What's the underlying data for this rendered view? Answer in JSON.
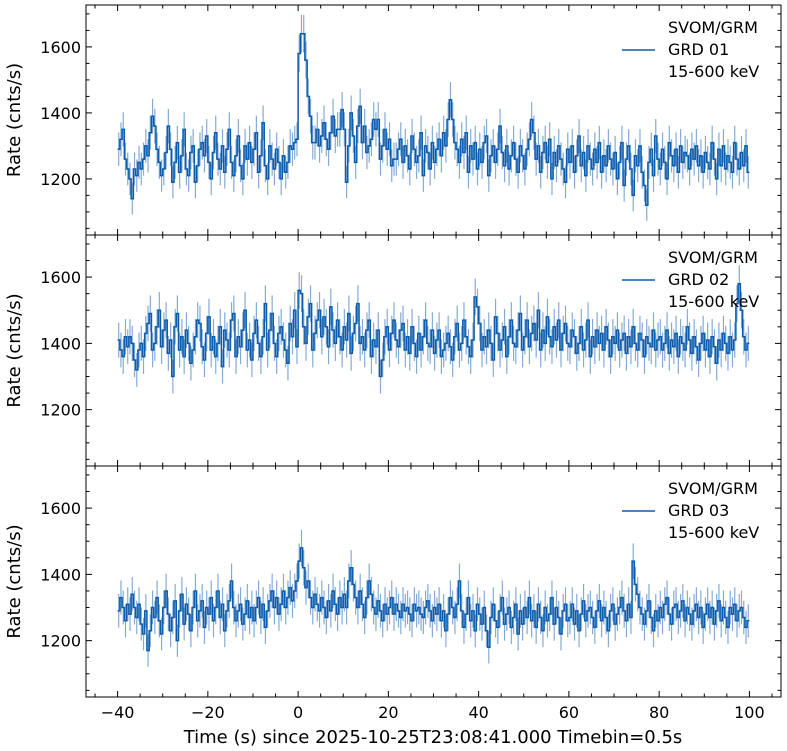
{
  "chart_data": [
    {
      "type": "line",
      "title": "",
      "legend": [
        "SVOM/GRM",
        "GRD 01",
        "15-600 keV"
      ],
      "legend_placement": "top-right",
      "ylabel": "Rate (cnts/s)",
      "xlim": [
        -47,
        107
      ],
      "ylim": [
        1030,
        1727
      ],
      "x_start": -40,
      "timebin": 0.5,
      "values": [
        1290,
        1320,
        1350,
        1260,
        1230,
        1200,
        1140,
        1230,
        1210,
        1250,
        1230,
        1260,
        1300,
        1270,
        1340,
        1390,
        1360,
        1290,
        1250,
        1210,
        1230,
        1280,
        1360,
        1290,
        1190,
        1250,
        1310,
        1220,
        1270,
        1350,
        1230,
        1210,
        1280,
        1300,
        1190,
        1240,
        1290,
        1310,
        1270,
        1330,
        1250,
        1200,
        1280,
        1340,
        1260,
        1230,
        1300,
        1220,
        1290,
        1350,
        1250,
        1210,
        1270,
        1330,
        1240,
        1200,
        1300,
        1260,
        1310,
        1250,
        1290,
        1340,
        1220,
        1270,
        1370,
        1240,
        1200,
        1300,
        1260,
        1230,
        1290,
        1250,
        1200,
        1270,
        1220,
        1250,
        1300,
        1290,
        1310,
        1320,
        1580,
        1640,
        1640,
        1560,
        1450,
        1390,
        1310,
        1310,
        1350,
        1300,
        1330,
        1370,
        1320,
        1290,
        1340,
        1390,
        1330,
        1350,
        1350,
        1410,
        1350,
        1190,
        1300,
        1400,
        1330,
        1250,
        1360,
        1420,
        1310,
        1360,
        1280,
        1300,
        1320,
        1380,
        1350,
        1380,
        1260,
        1300,
        1350,
        1290,
        1320,
        1240,
        1260,
        1260,
        1290,
        1320,
        1250,
        1300,
        1270,
        1230,
        1330,
        1290,
        1250,
        1270,
        1340,
        1210,
        1300,
        1280,
        1230,
        1310,
        1250,
        1290,
        1320,
        1270,
        1340,
        1300,
        1380,
        1440,
        1380,
        1310,
        1290,
        1250,
        1320,
        1280,
        1340,
        1220,
        1300,
        1260,
        1310,
        1230,
        1290,
        1250,
        1310,
        1330,
        1210,
        1270,
        1300,
        1250,
        1290,
        1360,
        1280,
        1240,
        1300,
        1230,
        1270,
        1310,
        1260,
        1220,
        1300,
        1270,
        1230,
        1290,
        1320,
        1380,
        1340,
        1260,
        1300,
        1220,
        1280,
        1310,
        1250,
        1320,
        1200,
        1280,
        1240,
        1300,
        1260,
        1230,
        1190,
        1290,
        1250,
        1300,
        1220,
        1270,
        1330,
        1240,
        1280,
        1210,
        1300,
        1260,
        1230,
        1290,
        1250,
        1310,
        1220,
        1270,
        1240,
        1300,
        1260,
        1230,
        1280,
        1200,
        1250,
        1310,
        1180,
        1260,
        1300,
        1230,
        1150,
        1270,
        1240,
        1300,
        1220,
        1180,
        1120,
        1250,
        1290,
        1210,
        1330,
        1260,
        1230,
        1290,
        1250,
        1200,
        1310,
        1270,
        1240,
        1290,
        1220,
        1300,
        1250,
        1280,
        1270,
        1230,
        1290,
        1260,
        1300,
        1240,
        1270,
        1220,
        1280,
        1250,
        1230,
        1310,
        1260,
        1200,
        1290,
        1240,
        1300,
        1230,
        1270,
        1250,
        1220,
        1310,
        1260,
        1230,
        1280,
        1240,
        1300,
        1220
      ]
    },
    {
      "type": "line",
      "title": "",
      "legend": [
        "SVOM/GRM",
        "GRD 02",
        "15-600 keV"
      ],
      "legend_placement": "top-right",
      "ylabel": "Rate (cnts/s)",
      "xlim": [
        -47,
        107
      ],
      "ylim": [
        1030,
        1727
      ],
      "x_start": -40,
      "timebin": 0.5,
      "values": [
        1410,
        1380,
        1360,
        1420,
        1390,
        1420,
        1400,
        1350,
        1320,
        1380,
        1400,
        1360,
        1430,
        1460,
        1490,
        1380,
        1400,
        1450,
        1500,
        1390,
        1440,
        1470,
        1370,
        1410,
        1300,
        1450,
        1490,
        1380,
        1420,
        1360,
        1440,
        1400,
        1340,
        1380,
        1420,
        1470,
        1460,
        1390,
        1350,
        1430,
        1480,
        1380,
        1420,
        1360,
        1400,
        1450,
        1330,
        1440,
        1410,
        1380,
        1470,
        1490,
        1360,
        1420,
        1390,
        1440,
        1500,
        1380,
        1410,
        1350,
        1430,
        1470,
        1400,
        1360,
        1420,
        1520,
        1380,
        1440,
        1490,
        1400,
        1360,
        1430,
        1450,
        1410,
        1380,
        1340,
        1460,
        1420,
        1500,
        1390,
        1560,
        1550,
        1450,
        1400,
        1480,
        1520,
        1380,
        1430,
        1470,
        1500,
        1420,
        1480,
        1450,
        1390,
        1510,
        1440,
        1400,
        1470,
        1420,
        1380,
        1450,
        1410,
        1490,
        1370,
        1430,
        1460,
        1520,
        1400,
        1420,
        1380,
        1440,
        1470,
        1360,
        1410,
        1390,
        1440,
        1300,
        1350,
        1420,
        1450,
        1380,
        1430,
        1470,
        1410,
        1390,
        1440,
        1460,
        1380,
        1420,
        1370,
        1450,
        1400,
        1360,
        1430,
        1380,
        1420,
        1470,
        1400,
        1390,
        1440,
        1370,
        1410,
        1440,
        1360,
        1380,
        1400,
        1430,
        1390,
        1350,
        1420,
        1460,
        1380,
        1400,
        1470,
        1420,
        1390,
        1360,
        1410,
        1540,
        1510,
        1460,
        1380,
        1420,
        1390,
        1440,
        1400,
        1350,
        1480,
        1430,
        1380,
        1410,
        1450,
        1360,
        1420,
        1470,
        1400,
        1390,
        1440,
        1490,
        1380,
        1420,
        1470,
        1390,
        1430,
        1460,
        1410,
        1500,
        1380,
        1440,
        1400,
        1480,
        1420,
        1390,
        1450,
        1410,
        1470,
        1380,
        1430,
        1460,
        1400,
        1390,
        1440,
        1420,
        1370,
        1400,
        1450,
        1380,
        1410,
        1470,
        1360,
        1420,
        1390,
        1440,
        1400,
        1430,
        1380,
        1450,
        1410,
        1360,
        1420,
        1400,
        1440,
        1380,
        1410,
        1430,
        1370,
        1420,
        1390,
        1450,
        1400,
        1380,
        1430,
        1410,
        1360,
        1420,
        1400,
        1390,
        1440,
        1380,
        1410,
        1420,
        1380,
        1400,
        1440,
        1370,
        1410,
        1390,
        1430,
        1360,
        1420,
        1400,
        1380,
        1450,
        1410,
        1370,
        1420,
        1390,
        1350,
        1400,
        1430,
        1380,
        1410,
        1360,
        1420,
        1390,
        1340,
        1410,
        1380,
        1430,
        1400,
        1370,
        1420,
        1380,
        1410,
        1520,
        1580,
        1500,
        1420,
        1380,
        1400
      ]
    },
    {
      "type": "line",
      "title": "",
      "legend": [
        "SVOM/GRM",
        "GRD 03",
        "15-600 keV"
      ],
      "legend_placement": "top-right",
      "ylabel": "Rate (cnts/s)",
      "xlabel": "Time (s) since 2025-10-25T23:08:41.000 Timebin=0.5s",
      "xlim": [
        -47,
        107
      ],
      "ylim": [
        1030,
        1727
      ],
      "x_start": -40,
      "timebin": 0.5,
      "values": [
        1290,
        1330,
        1300,
        1260,
        1310,
        1280,
        1340,
        1300,
        1270,
        1310,
        1250,
        1220,
        1290,
        1170,
        1230,
        1300,
        1270,
        1330,
        1260,
        1220,
        1300,
        1350,
        1280,
        1230,
        1270,
        1320,
        1200,
        1290,
        1340,
        1250,
        1310,
        1280,
        1230,
        1300,
        1350,
        1260,
        1290,
        1320,
        1240,
        1300,
        1280,
        1330,
        1260,
        1300,
        1350,
        1270,
        1310,
        1230,
        1290,
        1320,
        1380,
        1300,
        1260,
        1290,
        1310,
        1250,
        1280,
        1320,
        1270,
        1300,
        1260,
        1300,
        1330,
        1270,
        1310,
        1240,
        1290,
        1320,
        1350,
        1300,
        1330,
        1280,
        1310,
        1350,
        1300,
        1330,
        1360,
        1320,
        1350,
        1380,
        1440,
        1480,
        1420,
        1360,
        1380,
        1330,
        1300,
        1340,
        1310,
        1290,
        1330,
        1300,
        1270,
        1320,
        1290,
        1350,
        1310,
        1280,
        1330,
        1300,
        1340,
        1300,
        1380,
        1420,
        1370,
        1330,
        1300,
        1350,
        1310,
        1270,
        1330,
        1380,
        1340,
        1300,
        1280,
        1320,
        1290,
        1260,
        1310,
        1280,
        1300,
        1330,
        1280,
        1310,
        1290,
        1270,
        1310,
        1290,
        1300,
        1280,
        1260,
        1310,
        1290,
        1300,
        1280,
        1270,
        1300,
        1320,
        1290,
        1260,
        1300,
        1280,
        1310,
        1260,
        1290,
        1230,
        1280,
        1330,
        1300,
        1270,
        1310,
        1380,
        1290,
        1240,
        1280,
        1330,
        1260,
        1290,
        1230,
        1310,
        1280,
        1250,
        1300,
        1230,
        1180,
        1270,
        1310,
        1260,
        1240,
        1290,
        1330,
        1250,
        1280,
        1300,
        1240,
        1270,
        1310,
        1220,
        1290,
        1250,
        1300,
        1270,
        1330,
        1260,
        1290,
        1240,
        1310,
        1270,
        1230,
        1300,
        1260,
        1280,
        1330,
        1250,
        1300,
        1270,
        1220,
        1290,
        1310,
        1260,
        1270,
        1310,
        1250,
        1290,
        1230,
        1280,
        1320,
        1260,
        1290,
        1300,
        1270,
        1240,
        1290,
        1320,
        1260,
        1300,
        1270,
        1230,
        1290,
        1310,
        1250,
        1280,
        1300,
        1330,
        1290,
        1260,
        1310,
        1270,
        1440,
        1370,
        1340,
        1300,
        1280,
        1250,
        1290,
        1320,
        1270,
        1230,
        1290,
        1260,
        1300,
        1270,
        1310,
        1330,
        1280,
        1250,
        1300,
        1310,
        1270,
        1290,
        1320,
        1260,
        1300,
        1280,
        1250,
        1290,
        1310,
        1270,
        1300,
        1240,
        1280,
        1310,
        1270,
        1300,
        1250,
        1290,
        1320,
        1260,
        1300,
        1270,
        1240,
        1300,
        1280,
        1310,
        1260,
        1290,
        1300,
        1270,
        1240,
        1260
      ]
    }
  ],
  "x_ticks": [
    -40,
    -20,
    0,
    20,
    40,
    60,
    80,
    100
  ],
  "y_ticks": [
    1200,
    1400,
    1600
  ],
  "colors": {
    "line": "#0b5cad",
    "error": "#5b8fc8"
  }
}
